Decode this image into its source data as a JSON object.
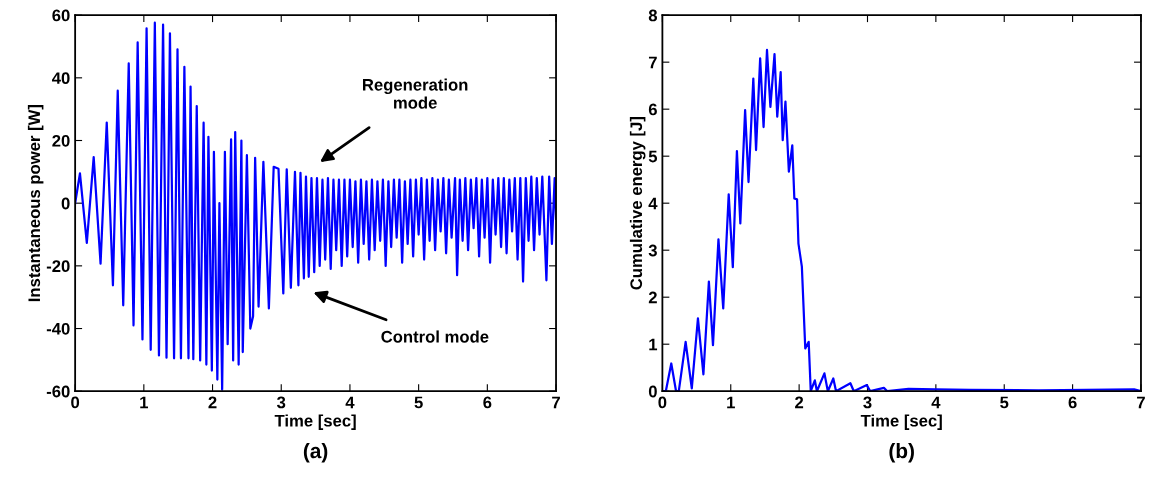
{
  "chart_data": [
    {
      "type": "line",
      "title": "(a)",
      "xlabel": "Time [sec]",
      "ylabel": "Instantaneous power [W]",
      "xlim": [
        0,
        7
      ],
      "xticks": [
        0,
        1,
        2,
        3,
        4,
        5,
        6,
        7
      ],
      "ylim": [
        -60,
        60
      ],
      "yticks": [
        -60,
        -40,
        -20,
        0,
        20,
        40,
        60
      ],
      "grid": false,
      "legend": false,
      "annotations": [
        "Regeneration\nmode",
        "Control mode"
      ],
      "series": [
        {
          "color": "#0000ff",
          "x": [
            0,
            0.07,
            0.17,
            0.27,
            0.37,
            0.46,
            0.55,
            0.62,
            0.7,
            0.78,
            0.85,
            0.91,
            0.98,
            1.04,
            1.1,
            1.16,
            1.22,
            1.28,
            1.33,
            1.38,
            1.44,
            1.49,
            1.54,
            1.59,
            1.65,
            1.68,
            1.72,
            1.77,
            1.82,
            1.87,
            1.91,
            1.94,
            1.99,
            2.02,
            2.07,
            2.1,
            2.14,
            2.18,
            2.22,
            2.27,
            2.3,
            2.33,
            2.38,
            2.42,
            2.44,
            2.5,
            2.55,
            2.59,
            2.62,
            2.67,
            2.74,
            2.82,
            2.89,
            2.96,
            3.03,
            3.08,
            3.14,
            3.2,
            3.25,
            3.28,
            3.33,
            3.36,
            3.4,
            3.44,
            3.48,
            3.52,
            3.56,
            3.6,
            3.64,
            3.68,
            3.72,
            3.76,
            3.8,
            3.84,
            3.88,
            3.92,
            3.96,
            4.0,
            4.04,
            4.08,
            4.12,
            4.16,
            4.2,
            4.24,
            4.28,
            4.32,
            4.36,
            4.4,
            4.44,
            4.48,
            4.52,
            4.56,
            4.6,
            4.64,
            4.68,
            4.72,
            4.76,
            4.8,
            4.84,
            4.88,
            4.92,
            4.96,
            5.0,
            5.04,
            5.08,
            5.12,
            5.16,
            5.2,
            5.24,
            5.28,
            5.32,
            5.36,
            5.4,
            5.44,
            5.48,
            5.53,
            5.56,
            5.6,
            5.64,
            5.68,
            5.72,
            5.76,
            5.8,
            5.84,
            5.88,
            5.92,
            5.96,
            6.0,
            6.04,
            6.08,
            6.12,
            6.16,
            6.2,
            6.24,
            6.28,
            6.32,
            6.36,
            6.4,
            6.44,
            6.48,
            6.52,
            6.56,
            6.6,
            6.64,
            6.68,
            6.72,
            6.76,
            6.8,
            6.86,
            6.9,
            6.94,
            6.98,
            7.0
          ],
          "values": [
            0,
            9.5,
            -12.7,
            14.7,
            -19.3,
            25.7,
            -26.2,
            35.9,
            -32.6,
            44.6,
            -39,
            51.3,
            -43.5,
            55.8,
            -46.8,
            57.6,
            -48.6,
            57,
            -49.3,
            54.2,
            -49.5,
            49.1,
            -49.5,
            43.5,
            -49.5,
            37.2,
            -49.8,
            31,
            -50.2,
            25.7,
            -51.5,
            21.2,
            -53.4,
            16.4,
            -56.3,
            0,
            -59.5,
            16.4,
            -45,
            20.4,
            -50.2,
            22.7,
            -51.5,
            20,
            -47.5,
            15.3,
            -40,
            -36.1,
            14.5,
            -33,
            13.2,
            -33.6,
            11.6,
            11,
            -28.8,
            10.8,
            -27,
            10,
            -26.2,
            9.7,
            -24,
            8.5,
            -23.5,
            8,
            -22,
            8,
            -20,
            7.5,
            -18,
            8,
            -21,
            7.5,
            -15,
            7.5,
            -20,
            7.5,
            -17,
            7.5,
            -14,
            7,
            -19,
            7.5,
            -13,
            7,
            -18,
            7.5,
            -15,
            7,
            -12,
            7.5,
            -20,
            7,
            -14,
            7.5,
            -11,
            7.5,
            -19,
            7,
            -13,
            7.5,
            -17,
            7.5,
            -10,
            8,
            -18,
            7.5,
            -12,
            8,
            -15,
            7.5,
            -9,
            8,
            -16,
            7.5,
            -11,
            8,
            -23,
            7.5,
            -12,
            8,
            -15,
            7.5,
            -8,
            8,
            -17,
            7.5,
            -11,
            8,
            -19,
            7.5,
            -10,
            8,
            -14,
            8,
            -16,
            7.5,
            -9,
            8,
            -18,
            8,
            -25,
            8,
            -12,
            8.5,
            -15,
            8,
            -10,
            8.5,
            -24.6,
            8.5,
            -13,
            8,
            -5
          ]
        }
      ]
    },
    {
      "type": "line",
      "title": "(b)",
      "xlabel": "Time [sec]",
      "ylabel": "Cumulative energy [J]",
      "xlim": [
        0,
        7
      ],
      "xticks": [
        0,
        1,
        2,
        3,
        4,
        5,
        6,
        7
      ],
      "ylim": [
        0,
        8
      ],
      "yticks": [
        0,
        1,
        2,
        3,
        4,
        5,
        6,
        7,
        8
      ],
      "grid": false,
      "legend": false,
      "series": [
        {
          "color": "#0000ff",
          "x": [
            0,
            0.05,
            0.13,
            0.2,
            0.24,
            0.34,
            0.43,
            0.52,
            0.6,
            0.68,
            0.74,
            0.82,
            0.89,
            0.97,
            1.03,
            1.09,
            1.14,
            1.21,
            1.26,
            1.33,
            1.37,
            1.43,
            1.48,
            1.53,
            1.58,
            1.64,
            1.68,
            1.73,
            1.76,
            1.8,
            1.85,
            1.9,
            1.93,
            1.97,
            1.99,
            2.04,
            2.09,
            2.14,
            2.17,
            2.23,
            2.26,
            2.37,
            2.42,
            2.5,
            2.54,
            2.75,
            2.8,
            2.99,
            3.04,
            3.24,
            3.29,
            3.6,
            4.0,
            4.5,
            5.5,
            6.9,
            7.0
          ],
          "values": [
            0,
            0,
            0.59,
            0,
            0,
            1.05,
            0.06,
            1.55,
            0.36,
            2.33,
            0.98,
            3.23,
            1.76,
            4.19,
            2.64,
            5.11,
            3.57,
            5.98,
            4.45,
            6.65,
            5.13,
            7.08,
            5.62,
            7.26,
            6.05,
            7.17,
            5.84,
            6.79,
            5.34,
            6.16,
            4.67,
            5.23,
            4.1,
            4.08,
            3.14,
            2.65,
            0.91,
            1.05,
            0,
            0.23,
            0,
            0.38,
            0,
            0.27,
            0,
            0.17,
            0,
            0.13,
            0,
            0.07,
            0,
            0.05,
            0.04,
            0.03,
            0.02,
            0.04,
            0
          ]
        }
      ]
    }
  ]
}
